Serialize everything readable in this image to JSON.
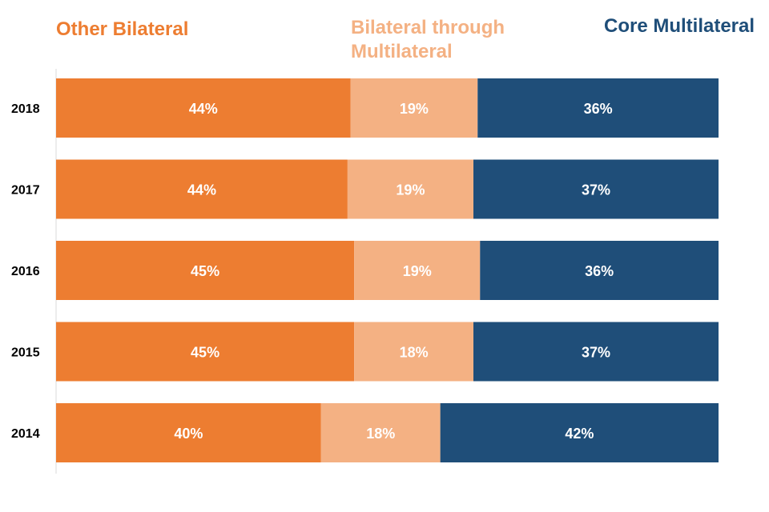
{
  "chart_data": {
    "type": "bar",
    "orientation": "horizontal",
    "stacked": true,
    "categories": [
      "2018",
      "2017",
      "2016",
      "2015",
      "2014"
    ],
    "series": [
      {
        "name": "Other Bilateral",
        "color": "#ED7D31",
        "label_color": "#FFFFFF",
        "values": [
          44,
          44,
          45,
          45,
          40
        ]
      },
      {
        "name": "Bilateral through Multilateral",
        "color": "#F4B183",
        "label_color": "#FFFFFF",
        "values": [
          19,
          19,
          19,
          18,
          18
        ]
      },
      {
        "name": "Core Multilateral",
        "color": "#1F4E79",
        "label_color": "#FFFFFF",
        "values": [
          36,
          37,
          36,
          37,
          42
        ]
      }
    ],
    "value_suffix": "%",
    "legend_position": "top",
    "grid": false,
    "title": "",
    "xlabel": "",
    "ylabel": ""
  }
}
